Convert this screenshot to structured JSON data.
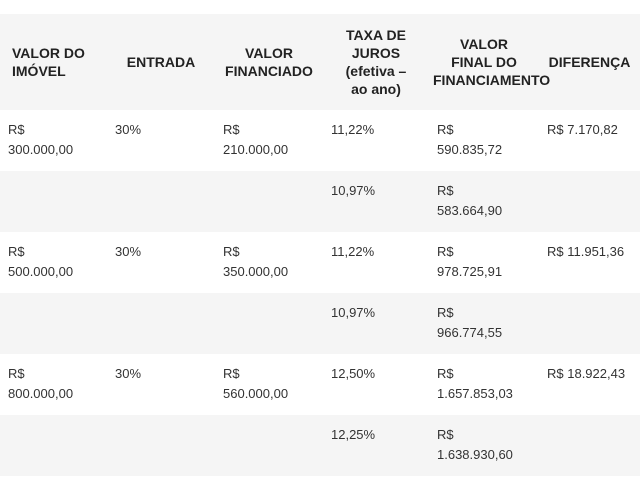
{
  "table": {
    "headers": [
      [
        "VALOR DO",
        "IMÓVEL"
      ],
      [
        "ENTRADA"
      ],
      [
        "VALOR",
        "FINANCIADO"
      ],
      [
        "TAXA DE",
        "JUROS",
        "(efetiva –",
        "ao ano)"
      ],
      [
        "VALOR",
        "FINAL DO",
        "FINANCIAMENTO"
      ],
      [
        "DIFERENÇA"
      ]
    ],
    "rows": [
      [
        [
          "R$",
          "300.000,00"
        ],
        [
          "30%"
        ],
        [
          "R$",
          "210.000,00"
        ],
        [
          "11,22%"
        ],
        [
          "R$",
          "590.835,72"
        ],
        [
          "R$ 7.170,82"
        ]
      ],
      [
        [
          ""
        ],
        [
          ""
        ],
        [
          ""
        ],
        [
          "10,97%"
        ],
        [
          "R$",
          "583.664,90"
        ],
        [
          ""
        ]
      ],
      [
        [
          "R$",
          "500.000,00"
        ],
        [
          "30%"
        ],
        [
          "R$",
          "350.000,00"
        ],
        [
          "11,22%"
        ],
        [
          "R$",
          "978.725,91"
        ],
        [
          "R$ 11.951,36"
        ]
      ],
      [
        [
          ""
        ],
        [
          ""
        ],
        [
          ""
        ],
        [
          "10,97%"
        ],
        [
          "R$",
          "966.774,55"
        ],
        [
          ""
        ]
      ],
      [
        [
          "R$",
          "800.000,00"
        ],
        [
          "30%"
        ],
        [
          "R$",
          "560.000,00"
        ],
        [
          "12,50%"
        ],
        [
          "R$",
          "1.657.853,03"
        ],
        [
          "R$ 18.922,43"
        ]
      ],
      [
        [
          ""
        ],
        [
          ""
        ],
        [
          ""
        ],
        [
          "12,25%"
        ],
        [
          "R$",
          "1.638.930,60"
        ],
        [
          ""
        ]
      ]
    ]
  }
}
